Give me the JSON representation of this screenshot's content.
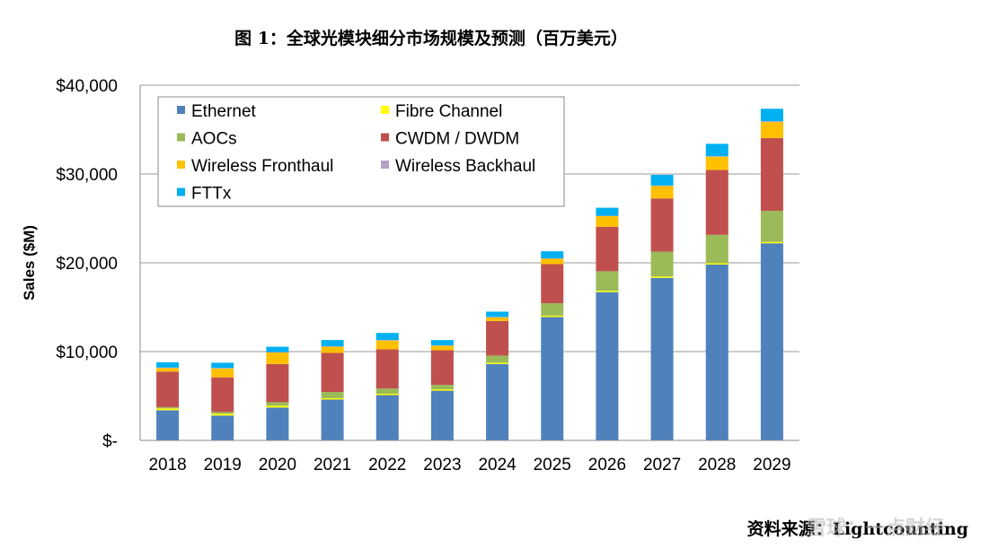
{
  "chart_data": {
    "type": "bar",
    "stacked": true,
    "title": "图 1：全球光模块细分市场规模及预测（百万美元）",
    "xlabel": "",
    "ylabel": "Sales ($M)",
    "ylim": [
      0,
      40000
    ],
    "yticks": [
      0,
      10000,
      20000,
      30000,
      40000
    ],
    "ytick_labels": [
      "$-",
      "$10,000",
      "$20,000",
      "$30,000",
      "$40,000"
    ],
    "grid": true,
    "legend_position": "top-left",
    "categories": [
      "2018",
      "2019",
      "2020",
      "2021",
      "2022",
      "2023",
      "2024",
      "2025",
      "2026",
      "2027",
      "2028",
      "2029"
    ],
    "series": [
      {
        "name": "Ethernet",
        "color": "#4F81BD",
        "values": [
          3400,
          2800,
          3700,
          4600,
          5100,
          5600,
          8600,
          13900,
          16700,
          18300,
          19800,
          22200
        ]
      },
      {
        "name": "Fibre Channel",
        "color": "#FFFF00",
        "values": [
          200,
          200,
          200,
          150,
          150,
          150,
          150,
          150,
          150,
          150,
          150,
          150
        ]
      },
      {
        "name": "AOCs",
        "color": "#9BBB59",
        "values": [
          150,
          200,
          400,
          700,
          600,
          500,
          800,
          1400,
          2200,
          2800,
          3200,
          3500
        ]
      },
      {
        "name": "CWDM / DWDM",
        "color": "#C0504D",
        "values": [
          4000,
          3900,
          4300,
          4400,
          4400,
          3900,
          3900,
          4400,
          5000,
          6000,
          7300,
          8200
        ]
      },
      {
        "name": "Wireless Fronthaul",
        "color": "#FFC000",
        "values": [
          400,
          1000,
          1300,
          700,
          1000,
          500,
          400,
          600,
          1200,
          1400,
          1500,
          1800
        ]
      },
      {
        "name": "Wireless Backhaul",
        "color": "#B3A2C7",
        "values": [
          50,
          50,
          50,
          50,
          50,
          50,
          50,
          50,
          50,
          50,
          50,
          100
        ]
      },
      {
        "name": "FTTx",
        "color": "#00B0F0",
        "values": [
          600,
          600,
          600,
          700,
          800,
          600,
          600,
          800,
          900,
          1200,
          1400,
          1400
        ]
      }
    ]
  },
  "footer": {
    "source_label": "资料来源：",
    "source_name": "Lightcounting",
    "watermark": "雪球：一点财经"
  }
}
